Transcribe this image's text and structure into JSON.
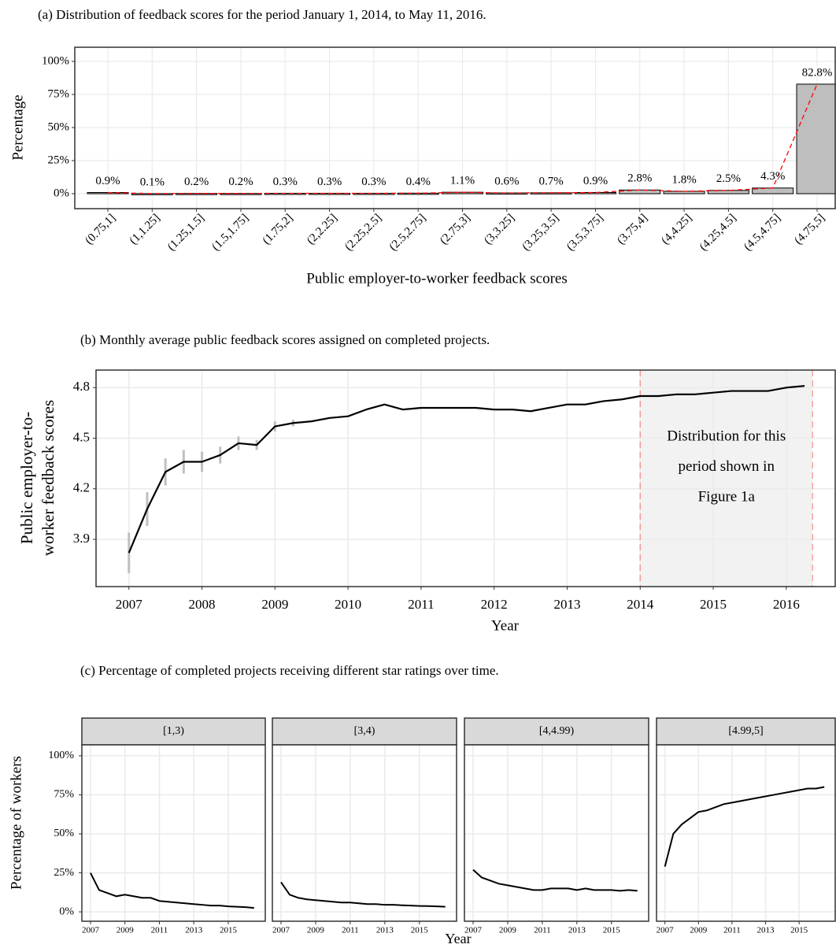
{
  "chart_data": [
    {
      "type": "bar",
      "title": "(a) Distribution of feedback scores for the period January 1, 2014, to May 11, 2016.",
      "x_label": "Public employer-to-worker feedback scores",
      "y_label": "Percentage",
      "categories": [
        "(0.75,1]",
        "(1,1.25]",
        "(1.25,1.5]",
        "(1.5,1.75]",
        "(1.75,2]",
        "(2,2.25]",
        "(2.25,2.5]",
        "(2.5,2.75]",
        "(2.75,3]",
        "(3,3.25]",
        "(3.25,3.5]",
        "(3.5,3.75]",
        "(3.75,4]",
        "(4,4.25]",
        "(4.25,4.5]",
        "(4.5,4.75]",
        "(4.75,5]"
      ],
      "values": [
        0.9,
        0.1,
        0.2,
        0.2,
        0.3,
        0.3,
        0.3,
        0.4,
        1.1,
        0.6,
        0.7,
        0.9,
        2.8,
        1.8,
        2.5,
        4.3,
        82.8
      ],
      "value_labels": [
        "0.9%",
        "0.1%",
        "0.2%",
        "0.2%",
        "0.3%",
        "0.3%",
        "0.3%",
        "0.4%",
        "1.1%",
        "0.6%",
        "0.7%",
        "0.9%",
        "2.8%",
        "1.8%",
        "2.5%",
        "4.3%",
        "82.8%"
      ],
      "ylim": [
        -11.3,
        110.7
      ],
      "yticks": [
        {
          "value": 0,
          "label": "0%"
        },
        {
          "value": 25,
          "label": "25%"
        },
        {
          "value": 50,
          "label": "50%"
        },
        {
          "value": 75,
          "label": "75%"
        },
        {
          "value": 100,
          "label": "100%"
        }
      ],
      "color": "#bebebe",
      "line_color": "#ff0000",
      "grid": true
    },
    {
      "type": "line",
      "title": "(b) Monthly average public feedback scores assigned on completed projects.",
      "x_label": "Year",
      "y_label": [
        "Public employer-to-",
        "worker feedback scores"
      ],
      "x": [
        2007,
        2007.25,
        2007.5,
        2007.75,
        2008,
        2008.25,
        2008.5,
        2008.75,
        2009,
        2009.25,
        2009.5,
        2009.75,
        2010,
        2010.25,
        2010.5,
        2010.75,
        2011,
        2011.25,
        2011.5,
        2011.75,
        2012,
        2012.25,
        2012.5,
        2012.75,
        2013,
        2013.25,
        2013.5,
        2013.75,
        2014,
        2014.25,
        2014.5,
        2014.75,
        2015,
        2015.25,
        2015.5,
        2015.75,
        2016,
        2016.25
      ],
      "values": [
        3.82,
        4.08,
        4.3,
        4.36,
        4.36,
        4.4,
        4.47,
        4.46,
        4.57,
        4.59,
        4.6,
        4.62,
        4.63,
        4.67,
        4.7,
        4.67,
        4.68,
        4.68,
        4.68,
        4.68,
        4.67,
        4.67,
        4.66,
        4.68,
        4.7,
        4.7,
        4.72,
        4.73,
        4.75,
        4.75,
        4.76,
        4.76,
        4.77,
        4.78,
        4.78,
        4.78,
        4.8,
        4.81
      ],
      "errors": [
        0.12,
        0.1,
        0.08,
        0.07,
        0.06,
        0.05,
        0.04,
        0.03,
        0.03,
        0.02,
        null,
        null,
        null,
        null,
        null,
        null,
        null,
        null,
        null,
        null,
        null,
        null,
        null,
        null,
        null,
        null,
        null,
        null,
        null,
        null,
        null,
        null,
        null,
        null,
        null,
        null,
        null,
        null
      ],
      "xlim": [
        2006.55,
        2016.67
      ],
      "xticks": [
        2007,
        2008,
        2009,
        2010,
        2011,
        2012,
        2013,
        2014,
        2015,
        2016
      ],
      "ylim": [
        3.62,
        4.904
      ],
      "yticks": [
        3.9,
        4.2,
        4.5,
        4.8
      ],
      "color": "#000000",
      "error_color": "#bfbfbf",
      "highlight": {
        "range": [
          2014,
          2016.36
        ],
        "label": [
          "Distribution for this",
          "period shown in",
          "Figure 1a"
        ],
        "color": "#ff0000"
      },
      "grid": true
    },
    {
      "type": "facet_line",
      "title": "(c) Percentage of completed projects receiving different star ratings over time.",
      "x_label": "Year",
      "y_label": "Percentage of workers",
      "x": [
        2007,
        2007.5,
        2008,
        2008.5,
        2009,
        2009.5,
        2010,
        2010.5,
        2011,
        2011.5,
        2012,
        2012.5,
        2013,
        2013.5,
        2014,
        2014.5,
        2015,
        2015.5,
        2016,
        2016.5
      ],
      "panels": [
        {
          "name": "[1,3)",
          "values": [
            25,
            14,
            12,
            10,
            11,
            10,
            9,
            9,
            7,
            6.5,
            6,
            5.5,
            5,
            4.5,
            4,
            4,
            3.5,
            3.3,
            3,
            2.5
          ]
        },
        {
          "name": "[3,4)",
          "values": [
            19,
            11,
            9,
            8,
            7.5,
            7,
            6.5,
            6,
            6,
            5.5,
            5,
            5,
            4.5,
            4.5,
            4.2,
            4,
            3.8,
            3.7,
            3.5,
            3.3
          ]
        },
        {
          "name": "[4,4.99)",
          "values": [
            27,
            22,
            20,
            18,
            17,
            16,
            15,
            14,
            14,
            15,
            15,
            15,
            14,
            15,
            14,
            14,
            14,
            13.5,
            14,
            13.5
          ]
        },
        {
          "name": "[4.99,5]",
          "values": [
            29,
            50,
            56,
            60,
            64,
            65,
            67,
            69,
            70,
            71,
            72,
            73,
            74,
            75,
            76,
            77,
            78,
            79,
            79,
            80
          ]
        }
      ],
      "xlim": [
        2006.5,
        2017.15
      ],
      "xticks": [
        2007,
        2009,
        2011,
        2013,
        2015
      ],
      "ylim": [
        -6,
        107
      ],
      "yticks": [
        {
          "value": 0,
          "label": "0%"
        },
        {
          "value": 25,
          "label": "25%"
        },
        {
          "value": 50,
          "label": "50%"
        },
        {
          "value": 75,
          "label": "75%"
        },
        {
          "value": 100,
          "label": "100%"
        }
      ],
      "color": "#000000",
      "strip_color": "#d9d9d9",
      "grid": true
    }
  ]
}
